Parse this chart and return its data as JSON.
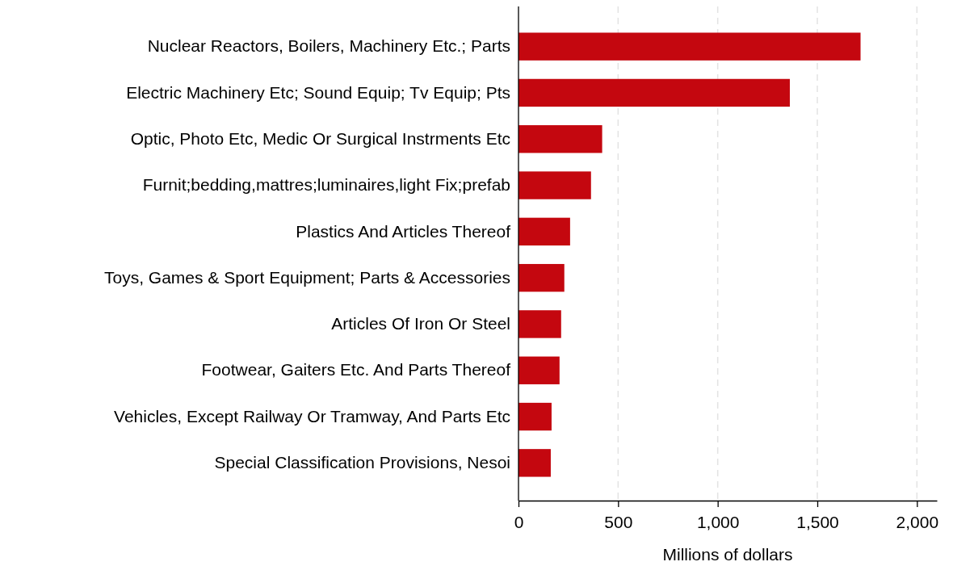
{
  "chart_data": {
    "type": "bar",
    "orientation": "horizontal",
    "xlabel": "Millions of dollars",
    "categories": [
      "Nuclear Reactors, Boilers, Machinery Etc.; Parts",
      "Electric Machinery Etc; Sound Equip; Tv Equip; Pts",
      "Optic, Photo Etc, Medic Or Surgical Instrments Etc",
      "Furnit;bedding,mattres;luminaires,light Fix;prefab",
      "Plastics And Articles Thereof",
      "Toys, Games & Sport Equipment; Parts & Accessories",
      "Articles Of Iron Or Steel",
      "Footwear, Gaiters Etc. And Parts Thereof",
      "Vehicles, Except Railway Or Tramway, And Parts Etc",
      "Special Classification Provisions, Nesoi"
    ],
    "values": [
      1717,
      1362,
      420,
      364,
      259,
      230,
      214,
      206,
      166,
      162
    ],
    "color": "#c4070f",
    "xlim": [
      0,
      2100
    ],
    "xticks": [
      0,
      500,
      {
        "value": 1000,
        "label": "1,000"
      },
      {
        "value": 1500,
        "label": "1,500"
      },
      {
        "value": 2000,
        "label": "2,000"
      }
    ],
    "grid": "x"
  }
}
